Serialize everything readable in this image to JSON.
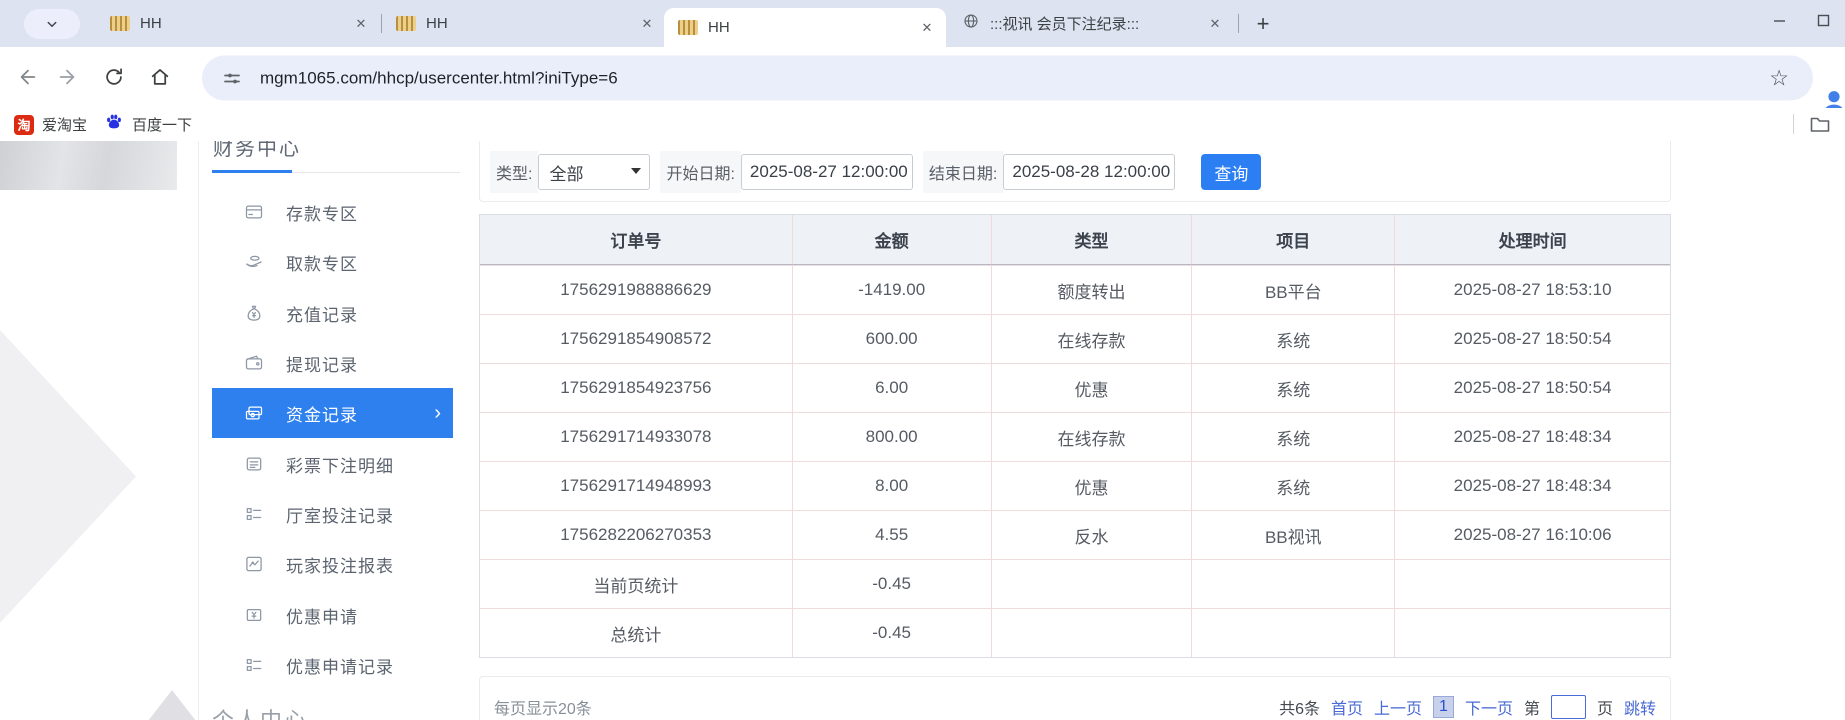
{
  "browser": {
    "tabs": [
      {
        "title": "HH",
        "favicon": "hh-gold",
        "active": false
      },
      {
        "title": "HH",
        "favicon": "hh-gold",
        "active": false
      },
      {
        "title": "HH",
        "favicon": "hh-gold",
        "active": true
      },
      {
        "title": ":::视讯 会员下注纪录:::",
        "favicon": "globe",
        "active": false
      }
    ],
    "url": "mgm1065.com/hhcp/usercenter.html?iniType=6",
    "bookmarks": [
      {
        "label": "爱淘宝",
        "icon": "taobao-icon"
      },
      {
        "label": "百度一下",
        "icon": "baidu-paw-icon"
      }
    ]
  },
  "sidebar": {
    "section_top": "财务中心",
    "items": [
      {
        "label": "存款专区",
        "icon": "deposit-card-icon",
        "selected": false
      },
      {
        "label": "取款专区",
        "icon": "withdraw-hand-icon",
        "selected": false
      },
      {
        "label": "充值记录",
        "icon": "moneybag-icon",
        "selected": false
      },
      {
        "label": "提现记录",
        "icon": "wallet-icon",
        "selected": false
      },
      {
        "label": "资金记录",
        "icon": "banknotes-icon",
        "selected": true
      },
      {
        "label": "彩票下注明细",
        "icon": "document-icon",
        "selected": false
      },
      {
        "label": "厅室投注记录",
        "icon": "list-icon",
        "selected": false
      },
      {
        "label": "玩家投注报表",
        "icon": "chart-icon",
        "selected": false
      },
      {
        "label": "优惠申请",
        "icon": "ticket-icon",
        "selected": false
      },
      {
        "label": "优惠申请记录",
        "icon": "list-icon",
        "selected": false
      }
    ],
    "section_bottom": "个人中心"
  },
  "filters": {
    "type_label": "类型:",
    "type_value": "全部",
    "start_label": "开始日期:",
    "start_value": "2025-08-27 12:00:00",
    "end_label": "结束日期:",
    "end_value": "2025-08-28 12:00:00",
    "search_button": "查询"
  },
  "table": {
    "headers": [
      "订单号",
      "金额",
      "类型",
      "项目",
      "处理时间"
    ],
    "rows": [
      [
        "1756291988886629",
        "-1419.00",
        "额度转出",
        "BB平台",
        "2025-08-27 18:53:10"
      ],
      [
        "1756291854908572",
        "600.00",
        "在线存款",
        "系统",
        "2025-08-27 18:50:54"
      ],
      [
        "1756291854923756",
        "6.00",
        "优惠",
        "系统",
        "2025-08-27 18:50:54"
      ],
      [
        "1756291714933078",
        "800.00",
        "在线存款",
        "系统",
        "2025-08-27 18:48:34"
      ],
      [
        "1756291714948993",
        "8.00",
        "优惠",
        "系统",
        "2025-08-27 18:48:34"
      ],
      [
        "1756282206270353",
        "4.55",
        "反水",
        "BB视讯",
        "2025-08-27 16:10:06"
      ],
      [
        "当前页统计",
        "-0.45",
        "",
        "",
        ""
      ],
      [
        "总统计",
        "-0.45",
        "",
        "",
        ""
      ]
    ]
  },
  "pagination": {
    "page_size_text": "每页显示20条",
    "total_text": "共6条",
    "first": "首页",
    "prev": "上一页",
    "current": "1",
    "next": "下一页",
    "jump_prefix": "第",
    "jump_value": "",
    "jump_suffix": "页",
    "jump_action": "跳转"
  },
  "colors": {
    "accent_blue": "#2d80ee",
    "button_blue": "#2b7ff2",
    "link_blue": "#4a6bd4",
    "tabstrip_bg": "#dee3f1",
    "table_border_pink": "#f3d9d9",
    "taobao_red": "#dc2b12",
    "baidu_blue": "#2932e1"
  }
}
